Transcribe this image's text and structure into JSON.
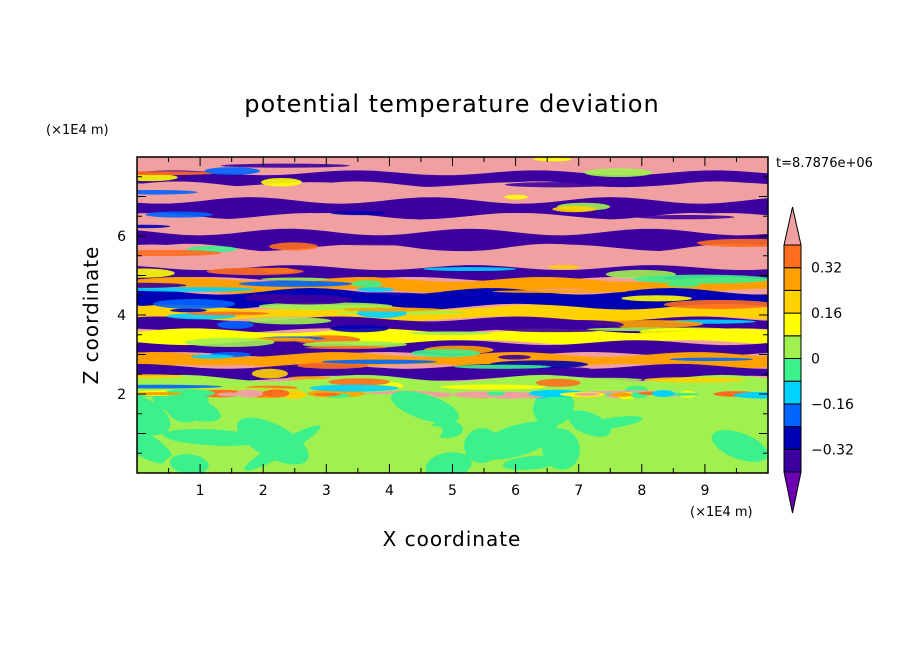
{
  "chart_data": {
    "type": "heatmap",
    "title": "potential temperature deviation",
    "xlabel": "X coordinate",
    "ylabel": "Z coordinate",
    "x_unit": "(×1E4 m)",
    "y_unit": "(×1E4 m)",
    "time_label": "t=8.7876e+06",
    "xlim": [
      0,
      10
    ],
    "ylim": [
      0,
      8
    ],
    "xticks": [
      "1",
      "2",
      "3",
      "4",
      "5",
      "6",
      "7",
      "8",
      "9"
    ],
    "yticks": [
      "2",
      "4",
      "6"
    ],
    "colorbar": {
      "levels": [
        -0.4,
        -0.32,
        -0.24,
        -0.16,
        -0.08,
        0,
        0.08,
        0.16,
        0.24,
        0.32,
        0.4
      ],
      "labels": [
        "0.32",
        "0.16",
        "0",
        "−0.16",
        "−0.32"
      ],
      "label_values": [
        0.32,
        0.16,
        0,
        -0.16,
        -0.32
      ],
      "colors_top_to_bottom": [
        "#f0a0a0",
        "#ff3c3c",
        "#ff6e1e",
        "#ffa000",
        "#ffd200",
        "#ffff00",
        "#a0f050",
        "#3cf08c",
        "#00d2ff",
        "#0064ff",
        "#0000b4",
        "#3c00a0",
        "#6e00b4"
      ],
      "extend": "both"
    },
    "layer_boundary_z": 2.0,
    "description_bands": [
      {
        "z": [
          7.6,
          8.0
        ],
        "value": 0.4
      },
      {
        "z": [
          7.3,
          7.6
        ],
        "value": -0.4
      },
      {
        "z": [
          6.9,
          7.3
        ],
        "value": 0.4
      },
      {
        "z": [
          6.5,
          6.9
        ],
        "value": -0.4
      },
      {
        "z": [
          6.1,
          6.5
        ],
        "value": 0.4
      },
      {
        "z": [
          5.7,
          6.1
        ],
        "value": -0.36
      },
      {
        "z": [
          5.2,
          5.7
        ],
        "value": 0.4
      },
      {
        "z": [
          4.9,
          5.2
        ],
        "value": -0.4
      },
      {
        "z": [
          4.6,
          4.9
        ],
        "value": 0.3
      },
      {
        "z": [
          4.2,
          4.6
        ],
        "value": -0.3
      },
      {
        "z": [
          3.9,
          4.2
        ],
        "value": 0.2
      },
      {
        "z": [
          3.6,
          3.9
        ],
        "value": -0.36
      },
      {
        "z": [
          3.3,
          3.6
        ],
        "value": 0.1
      },
      {
        "z": [
          3.0,
          3.3
        ],
        "value": -0.4
      },
      {
        "z": [
          2.7,
          3.0
        ],
        "value": 0.28
      },
      {
        "z": [
          2.4,
          2.7
        ],
        "value": -0.36
      },
      {
        "z": [
          2.0,
          2.4
        ],
        "value": 0.05
      },
      {
        "z": [
          0.0,
          2.0
        ],
        "value": 0.02
      }
    ]
  }
}
